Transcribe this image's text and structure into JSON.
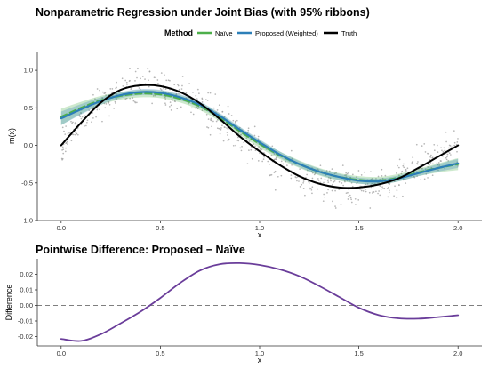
{
  "chart_data": [
    {
      "type": "line",
      "title": "Nonparametric Regression under Joint Bias (with 95% ribbons)",
      "xlabel": "x",
      "ylabel": "m(x)",
      "xlim": [
        -0.12,
        2.12
      ],
      "ylim": [
        -1.0,
        1.25
      ],
      "x_ticks": [
        "0.0",
        "0.5",
        "1.0",
        "1.5",
        "2.0"
      ],
      "y_ticks": [
        "-1.0",
        "-0.5",
        "0.0",
        "0.5",
        "1.0"
      ],
      "grid": false,
      "legend": {
        "title": "Method",
        "position": "top",
        "entries": [
          {
            "label": "Naïve",
            "color": "#4daf4a"
          },
          {
            "label": "Proposed (Weighted)",
            "color": "#2c7fb8"
          },
          {
            "label": "Truth",
            "color": "#000000"
          }
        ]
      },
      "x": [
        0.0,
        0.1,
        0.2,
        0.3,
        0.4,
        0.5,
        0.6,
        0.7,
        0.8,
        0.9,
        1.0,
        1.1,
        1.2,
        1.3,
        1.4,
        1.5,
        1.6,
        1.7,
        1.8,
        1.9,
        2.0
      ],
      "series": [
        {
          "name": "Truth",
          "color": "#000000",
          "values": [
            0.0,
            0.3,
            0.57,
            0.74,
            0.8,
            0.79,
            0.71,
            0.56,
            0.35,
            0.12,
            -0.08,
            -0.26,
            -0.41,
            -0.51,
            -0.56,
            -0.56,
            -0.52,
            -0.44,
            -0.3,
            -0.15,
            0.0
          ]
        },
        {
          "name": "Naïve",
          "color": "#4daf4a",
          "dashed": true,
          "values": [
            0.38,
            0.5,
            0.6,
            0.66,
            0.69,
            0.68,
            0.62,
            0.52,
            0.37,
            0.19,
            0.02,
            -0.13,
            -0.25,
            -0.35,
            -0.42,
            -0.46,
            -0.47,
            -0.43,
            -0.36,
            -0.3,
            -0.25
          ]
        },
        {
          "name": "Proposed (Weighted)",
          "color": "#2c7fb8",
          "values": [
            0.36,
            0.48,
            0.59,
            0.67,
            0.71,
            0.7,
            0.64,
            0.54,
            0.39,
            0.21,
            0.04,
            -0.12,
            -0.25,
            -0.35,
            -0.42,
            -0.47,
            -0.48,
            -0.44,
            -0.37,
            -0.3,
            -0.24
          ]
        }
      ],
      "ribbons": [
        {
          "series": "Naïve",
          "color": "#4daf4a",
          "halfwidth": [
            0.11,
            0.08,
            0.06,
            0.05,
            0.05,
            0.05,
            0.05,
            0.05,
            0.05,
            0.05,
            0.05,
            0.05,
            0.05,
            0.05,
            0.05,
            0.05,
            0.05,
            0.05,
            0.05,
            0.06,
            0.08
          ]
        },
        {
          "series": "Proposed (Weighted)",
          "color": "#2c7fb8",
          "halfwidth": [
            0.09,
            0.07,
            0.05,
            0.04,
            0.04,
            0.04,
            0.04,
            0.04,
            0.04,
            0.04,
            0.04,
            0.04,
            0.04,
            0.04,
            0.04,
            0.04,
            0.04,
            0.04,
            0.04,
            0.05,
            0.06
          ]
        }
      ],
      "points": {
        "count": 700,
        "spread": 0.22,
        "color": "#9e9e9e"
      }
    },
    {
      "type": "line",
      "title": "Pointwise Difference: Proposed − Naïve",
      "xlabel": "x",
      "ylabel": "Difference",
      "xlim": [
        -0.12,
        2.12
      ],
      "ylim": [
        -0.026,
        0.03
      ],
      "x_ticks": [
        "0.0",
        "0.5",
        "1.0",
        "1.5",
        "2.0"
      ],
      "y_ticks": [
        "-0.02",
        "-0.01",
        "0.00",
        "0.01",
        "0.02"
      ],
      "grid": false,
      "reference_line": {
        "y": 0.0,
        "style": "dashed",
        "color": "#7f7f7f"
      },
      "x": [
        0.0,
        0.1,
        0.2,
        0.3,
        0.4,
        0.5,
        0.6,
        0.7,
        0.8,
        0.9,
        1.0,
        1.1,
        1.2,
        1.3,
        1.4,
        1.5,
        1.6,
        1.7,
        1.8,
        1.9,
        2.0
      ],
      "series": [
        {
          "name": "Proposed − Naïve",
          "color": "#6a3d9a",
          "values": [
            -0.0215,
            -0.0228,
            -0.0185,
            -0.0115,
            -0.004,
            0.0048,
            0.0145,
            0.0225,
            0.0265,
            0.0272,
            0.026,
            0.0232,
            0.0188,
            0.0125,
            0.0055,
            -0.0015,
            -0.0062,
            -0.0083,
            -0.0085,
            -0.0075,
            -0.0063
          ]
        }
      ]
    }
  ]
}
